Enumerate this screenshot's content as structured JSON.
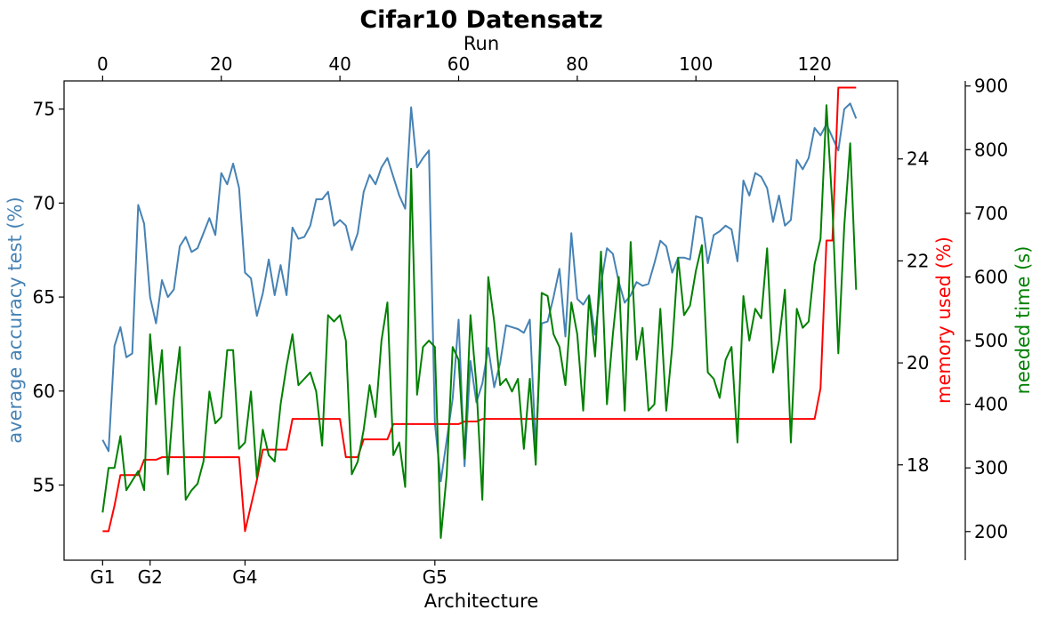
{
  "chart_data": {
    "type": "line",
    "title": "Cifar10 Datensatz",
    "x_top_label": "Run",
    "x_bottom_label": "Architecture",
    "x_top_ticks": [
      0,
      20,
      40,
      60,
      80,
      100,
      120
    ],
    "x_bottom_ticks": [
      {
        "label": "G1",
        "run": 0
      },
      {
        "label": "G2",
        "run": 8
      },
      {
        "label": "G4",
        "run": 24
      },
      {
        "label": "G5",
        "run": 56
      }
    ],
    "xlim": [
      -6.5,
      134
    ],
    "axes": {
      "accuracy": {
        "label": "average accuracy test (%)",
        "color": "#4682b4",
        "ylim": [
          51.0,
          76.5
        ],
        "ticks": [
          55,
          60,
          65,
          70,
          75
        ]
      },
      "memory": {
        "label": "memory used (%)",
        "color": "#ff0000",
        "ylim": [
          16.13,
          25.53
        ],
        "ticks": [
          18,
          20,
          22,
          24
        ]
      },
      "time": {
        "label": "needed time (s)",
        "color": "#008000",
        "ylim": [
          155,
          908
        ],
        "ticks": [
          200,
          300,
          400,
          500,
          600,
          700,
          800,
          900
        ]
      }
    },
    "series": [
      {
        "name": "accuracy",
        "axis": "accuracy",
        "color": "#4682b4",
        "values": [
          57.4,
          56.8,
          62.4,
          63.4,
          61.8,
          62.0,
          69.9,
          68.9,
          65.0,
          63.6,
          65.9,
          65.0,
          65.4,
          67.7,
          68.2,
          67.4,
          67.6,
          68.4,
          69.2,
          68.3,
          71.6,
          71.0,
          72.1,
          70.8,
          66.3,
          66.0,
          64.0,
          65.2,
          67.0,
          65.1,
          66.7,
          65.1,
          68.7,
          68.1,
          68.2,
          68.8,
          70.2,
          70.2,
          70.6,
          68.8,
          69.1,
          68.8,
          67.5,
          68.4,
          70.6,
          71.5,
          71.0,
          71.9,
          72.4,
          71.4,
          70.4,
          69.7,
          75.1,
          71.9,
          72.4,
          72.8,
          58.3,
          55.2,
          57.4,
          59.6,
          63.8,
          56.0,
          61.6,
          59.4,
          60.4,
          62.3,
          60.2,
          61.5,
          63.5,
          63.4,
          63.3,
          63.1,
          63.8,
          57.0,
          63.6,
          63.7,
          65.0,
          66.5,
          62.9,
          68.4,
          64.9,
          64.6,
          65.1,
          63.0,
          65.7,
          67.6,
          67.3,
          65.8,
          64.7,
          65.1,
          65.8,
          65.6,
          65.7,
          66.8,
          68.0,
          67.7,
          66.3,
          67.1,
          67.1,
          67.0,
          69.3,
          69.2,
          66.8,
          68.3,
          68.5,
          68.8,
          68.6,
          66.9,
          71.2,
          70.4,
          71.6,
          71.4,
          70.8,
          69.0,
          70.4,
          68.8,
          69.1,
          72.3,
          71.8,
          72.4,
          74.0,
          73.6,
          74.2,
          73.5,
          72.8,
          75.0,
          75.3,
          74.5
        ]
      },
      {
        "name": "memory",
        "axis": "memory",
        "color": "#ff0000",
        "values": [
          16.7,
          16.7,
          17.2,
          17.8,
          17.8,
          17.8,
          17.8,
          18.1,
          18.1,
          18.1,
          18.15,
          18.15,
          18.15,
          18.15,
          18.15,
          18.15,
          18.15,
          18.15,
          18.15,
          18.15,
          18.15,
          18.15,
          18.15,
          18.15,
          16.7,
          17.2,
          17.7,
          18.3,
          18.3,
          18.3,
          18.3,
          18.3,
          18.9,
          18.9,
          18.9,
          18.9,
          18.9,
          18.9,
          18.9,
          18.9,
          18.9,
          18.15,
          18.15,
          18.15,
          18.5,
          18.5,
          18.5,
          18.5,
          18.5,
          18.8,
          18.8,
          18.8,
          18.8,
          18.8,
          18.8,
          18.8,
          18.8,
          18.8,
          18.8,
          18.8,
          18.8,
          18.85,
          18.85,
          18.85,
          18.9,
          18.9,
          18.9,
          18.9,
          18.9,
          18.9,
          18.9,
          18.9,
          18.9,
          18.9,
          18.9,
          18.9,
          18.9,
          18.9,
          18.9,
          18.9,
          18.9,
          18.9,
          18.9,
          18.9,
          18.9,
          18.9,
          18.9,
          18.9,
          18.9,
          18.9,
          18.9,
          18.9,
          18.9,
          18.9,
          18.9,
          18.9,
          18.9,
          18.9,
          18.9,
          18.9,
          18.9,
          18.9,
          18.9,
          18.9,
          18.9,
          18.9,
          18.9,
          18.9,
          18.9,
          18.9,
          18.9,
          18.9,
          18.9,
          18.9,
          18.9,
          18.9,
          18.9,
          18.9,
          18.9,
          18.9,
          18.9,
          19.5,
          22.4,
          22.4,
          25.4,
          25.4,
          25.4,
          25.4
        ]
      },
      {
        "name": "time",
        "axis": "time",
        "color": "#008000",
        "values": [
          230,
          300,
          300,
          350,
          265,
          280,
          295,
          265,
          510,
          400,
          485,
          290,
          410,
          490,
          250,
          265,
          275,
          310,
          420,
          370,
          380,
          485,
          485,
          330,
          340,
          420,
          285,
          360,
          320,
          310,
          400,
          460,
          510,
          430,
          440,
          450,
          420,
          335,
          540,
          530,
          540,
          500,
          290,
          310,
          360,
          430,
          380,
          500,
          560,
          320,
          340,
          270,
          770,
          415,
          490,
          500,
          490,
          190,
          290,
          490,
          470,
          315,
          540,
          430,
          250,
          600,
          530,
          430,
          440,
          420,
          440,
          330,
          440,
          305,
          575,
          570,
          510,
          490,
          430,
          560,
          510,
          390,
          570,
          475,
          640,
          400,
          510,
          600,
          390,
          655,
          470,
          520,
          390,
          400,
          550,
          390,
          490,
          630,
          540,
          555,
          610,
          650,
          450,
          440,
          410,
          470,
          490,
          340,
          570,
          500,
          550,
          535,
          645,
          450,
          500,
          580,
          340,
          550,
          520,
          530,
          620,
          660,
          870,
          710,
          480,
          680,
          810,
          580
        ]
      }
    ]
  }
}
